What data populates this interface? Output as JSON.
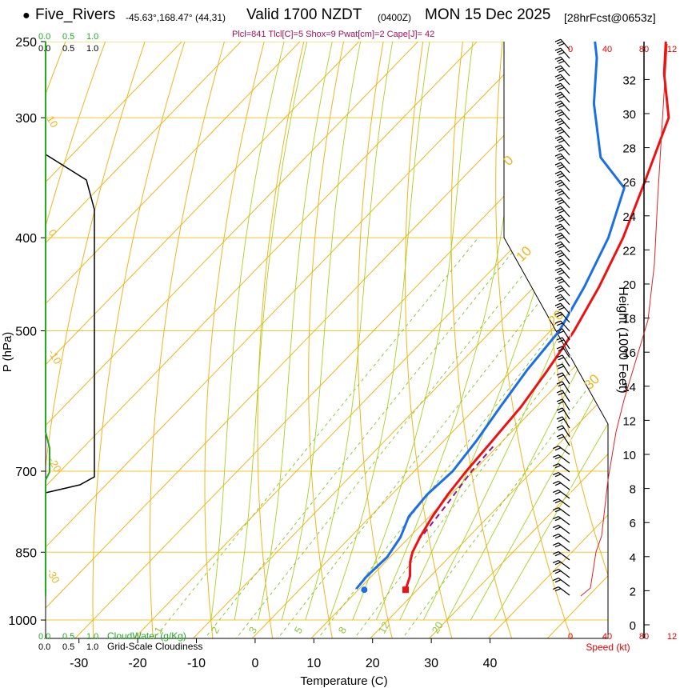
{
  "header": {
    "dot": "●",
    "station": "Five_Rivers",
    "coords": "-45.63°,168.47° (44,31)",
    "valid": "Valid 1700 NZDT",
    "utc": "(0400Z)",
    "date": "MON 15 Dec 2025",
    "forecast": "[28hrFcst@0653z]"
  },
  "params": "Plcl=841 Tlcl[C]=5 Shox=9 Pwat[cm]=2 Cape[J]= 42",
  "colors": {
    "temperature": "#ee1111",
    "dewpoint": "#1a6ee6",
    "parcel": "#8b1a8b",
    "dry_adiabat": "#f0b41e",
    "moist_adiabat": "#a8d020",
    "mixing_ratio": "#8cc83c",
    "isobar": "#f0c832",
    "cloud": "#22aa22",
    "height_curve": "#dd2222",
    "text_red": "#dd0000"
  },
  "chart_data": {
    "type": "line",
    "subtype": "skew-t log-p sounding",
    "xlabel": "Temperature (C)",
    "ylabel": "P (hPa)",
    "ylabel_right": "Height (1000 Feet)",
    "x_ticks": [
      -30,
      -20,
      -10,
      0,
      10,
      20,
      30,
      40
    ],
    "y_ticks": [
      250,
      300,
      400,
      500,
      700,
      850,
      1000
    ],
    "xlim": [
      -35,
      45
    ],
    "ylim": [
      1045,
      250
    ],
    "height_ticks": [
      "0",
      "2",
      "4",
      "6",
      "8",
      "10",
      "12",
      "14",
      "16",
      "18",
      "20",
      "22",
      "24",
      "26",
      "28",
      "30",
      "32"
    ],
    "isotherm_labels": [
      "0",
      "10",
      "20",
      "30"
    ],
    "dry_adiabat_labels": [
      "10",
      "0",
      "-10",
      "-20",
      "-30"
    ],
    "mixing_ratio_labels": [
      "1",
      "2",
      "3",
      "5",
      "8",
      "12",
      "20"
    ],
    "cloud_scale_top": [
      "0.0",
      "0.5",
      "1.0"
    ],
    "cloud_scale_top2": [
      "0.0",
      "0.5",
      "1.0"
    ],
    "cloud_label": "CloudWater (g/Kg)",
    "cloudiness_label": "Grid-Scale Cloudiness",
    "speed_ticks": [
      "0",
      "40",
      "80",
      "12"
    ],
    "speed_label": "Speed (kt)",
    "series": [
      {
        "key": "temperature",
        "points": [
          [
            18,
            930
          ],
          [
            16.5,
            900
          ],
          [
            14.2,
            870
          ],
          [
            13.0,
            850
          ],
          [
            11.8,
            820
          ],
          [
            10.5,
            780
          ],
          [
            9.5,
            740
          ],
          [
            8.8,
            700
          ],
          [
            8.2,
            650
          ],
          [
            7.5,
            600
          ],
          [
            6.0,
            550
          ],
          [
            4.0,
            500
          ],
          [
            1.0,
            450
          ],
          [
            -3.0,
            400
          ],
          [
            -8.5,
            350
          ],
          [
            -15.0,
            300
          ],
          [
            -23.0,
            270
          ],
          [
            -28.0,
            250
          ]
        ]
      },
      {
        "key": "dewpoint",
        "points": [
          [
            9.5,
            928
          ],
          [
            9.2,
            900
          ],
          [
            9.5,
            860
          ],
          [
            8.5,
            820
          ],
          [
            6.5,
            780
          ],
          [
            6.0,
            740
          ],
          [
            6.5,
            700
          ],
          [
            5.5,
            650
          ],
          [
            4.0,
            600
          ],
          [
            2.5,
            550
          ],
          [
            1.5,
            500
          ],
          [
            -1.5,
            450
          ],
          [
            -5.5,
            400
          ],
          [
            -11.0,
            355
          ],
          [
            -20.0,
            330
          ],
          [
            -30.0,
            290
          ],
          [
            -37.0,
            260
          ],
          [
            -40.0,
            250
          ]
        ]
      },
      {
        "key": "parcel",
        "points": [
          [
            9.3,
            660
          ],
          [
            9.7,
            700
          ],
          [
            11.0,
            760
          ],
          [
            12.0,
            820
          ]
        ]
      }
    ],
    "surface": {
      "temperature": 18,
      "dewpoint": 11,
      "pressure": 930
    }
  }
}
